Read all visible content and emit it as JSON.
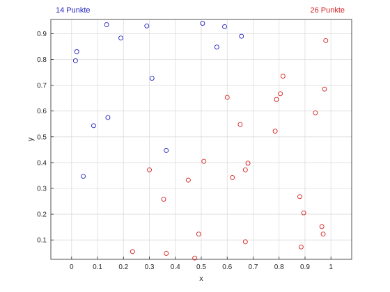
{
  "header": {
    "left_label": "14 Punkte",
    "right_label": "26 Punkte"
  },
  "colors": {
    "blue": "#1f1fbf",
    "red": "#d62020",
    "axis": "#262626",
    "grid": "#dcdcdc"
  },
  "chart_data": {
    "type": "scatter",
    "xlabel": "x",
    "ylabel": "y",
    "xlim": [
      -0.08,
      1.08
    ],
    "ylim": [
      0.025,
      0.955
    ],
    "grid": true,
    "xticks": [
      0,
      0.1,
      0.2,
      0.3,
      0.4,
      0.5,
      0.6,
      0.7,
      0.8,
      0.9,
      1
    ],
    "xtick_labels": [
      "0",
      "0.1",
      "0.2",
      "0.3",
      "0.4",
      "0.5",
      "0.6",
      "0.7",
      "0.8",
      "0.9",
      "1"
    ],
    "yticks": [
      0.1,
      0.2,
      0.3,
      0.4,
      0.5,
      0.6,
      0.7,
      0.8,
      0.9
    ],
    "ytick_labels": [
      "0.1",
      "0.2",
      "0.3",
      "0.4",
      "0.5",
      "0.6",
      "0.7",
      "0.8",
      "0.9"
    ],
    "series": [
      {
        "color": "#1f1fbf",
        "points": [
          [
            0.135,
            0.935
          ],
          [
            0.19,
            0.883
          ],
          [
            0.29,
            0.93
          ],
          [
            0.505,
            0.94
          ],
          [
            0.59,
            0.927
          ],
          [
            0.56,
            0.848
          ],
          [
            0.655,
            0.89
          ],
          [
            0.02,
            0.83
          ],
          [
            0.015,
            0.795
          ],
          [
            0.31,
            0.727
          ],
          [
            0.085,
            0.543
          ],
          [
            0.14,
            0.575
          ],
          [
            0.365,
            0.447
          ],
          [
            0.045,
            0.347
          ]
        ]
      },
      {
        "color": "#d62020",
        "points": [
          [
            0.98,
            0.873
          ],
          [
            0.815,
            0.735
          ],
          [
            0.975,
            0.685
          ],
          [
            0.805,
            0.667
          ],
          [
            0.79,
            0.645
          ],
          [
            0.6,
            0.653
          ],
          [
            0.94,
            0.593
          ],
          [
            0.65,
            0.548
          ],
          [
            0.785,
            0.522
          ],
          [
            0.51,
            0.405
          ],
          [
            0.68,
            0.398
          ],
          [
            0.3,
            0.372
          ],
          [
            0.67,
            0.372
          ],
          [
            0.62,
            0.342
          ],
          [
            0.45,
            0.332
          ],
          [
            0.355,
            0.258
          ],
          [
            0.88,
            0.268
          ],
          [
            0.895,
            0.205
          ],
          [
            0.965,
            0.152
          ],
          [
            0.97,
            0.123
          ],
          [
            0.49,
            0.123
          ],
          [
            0.67,
            0.093
          ],
          [
            0.885,
            0.073
          ],
          [
            0.235,
            0.055
          ],
          [
            0.365,
            0.048
          ],
          [
            0.475,
            0.03
          ]
        ]
      }
    ]
  }
}
